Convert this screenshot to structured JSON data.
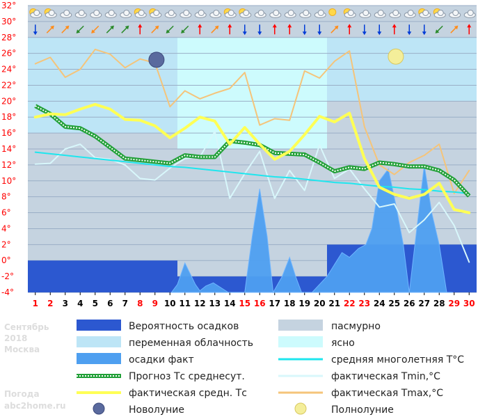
{
  "chart_data": {
    "type": "line",
    "ylim": [
      -4,
      32
    ],
    "yticks": [
      "-4",
      "-2",
      "0",
      "2",
      "4",
      "6",
      "8",
      "10",
      "12",
      "14",
      "16",
      "18",
      "20",
      "22",
      "24",
      "26",
      "28",
      "30",
      "32"
    ],
    "ytick_suffix": "°",
    "days": [
      1,
      2,
      3,
      4,
      5,
      6,
      7,
      8,
      9,
      10,
      11,
      12,
      13,
      14,
      15,
      16,
      17,
      18,
      19,
      20,
      21,
      22,
      23,
      24,
      25,
      26,
      27,
      28,
      29,
      30
    ],
    "day_colors": [
      "#ff0000",
      "#ff0000",
      "#000000",
      "#000000",
      "#000000",
      "#000000",
      "#000000",
      "#ff0000",
      "#ff0000",
      "#000000",
      "#000000",
      "#000000",
      "#000000",
      "#000000",
      "#ff0000",
      "#ff0000",
      "#000000",
      "#000000",
      "#000000",
      "#000000",
      "#000000",
      "#ff0000",
      "#ff0000",
      "#000000",
      "#000000",
      "#000000",
      "#000000",
      "#000000",
      "#ff0000",
      "#ff0000"
    ],
    "cloud_bands": [
      {
        "from_day": 0.5,
        "to_day": 10.5,
        "type": "partly",
        "y_top": 28,
        "y_bottom": 16
      },
      {
        "from_day": 10.5,
        "to_day": 20.5,
        "type": "clear",
        "y_top": 28,
        "y_bottom": 14
      },
      {
        "from_day": 20.5,
        "to_day": 30.5,
        "type": "overcast",
        "y_top": 20,
        "y_bottom": 2
      },
      {
        "from_day": 20.5,
        "to_day": 30.5,
        "type": "partly",
        "y_top": 28,
        "y_bottom": 20
      }
    ],
    "precip_probability_bars": [
      {
        "from_day": 0.5,
        "to_day": 10.5,
        "value": 0
      },
      {
        "from_day": 10.5,
        "to_day": 20.5,
        "value": -2
      },
      {
        "from_day": 20.5,
        "to_day": 30.5,
        "value": 2
      }
    ],
    "series": [
      {
        "name": "осадки факт",
        "type": "area",
        "color": "#4e9ff0",
        "x": [
          10.1,
          10.5,
          11.0,
          11.7,
          12.0,
          12.4,
          12.9,
          13.4,
          13.9,
          14.5,
          15.0,
          15.5,
          16.0,
          16.5,
          16.9,
          17.5,
          18.0,
          18.4,
          18.8,
          19.5,
          20.5,
          21.0,
          21.5,
          22.0,
          22.6,
          23.1,
          23.5,
          24.0,
          24.6,
          25.1,
          25.6,
          26.0,
          26.5,
          27.0,
          27.5,
          28.0,
          28.5,
          28.9
        ],
        "y": [
          -4,
          -3,
          -0.3,
          -3,
          -3.8,
          -3.2,
          -2.8,
          -3.4,
          -4,
          -4,
          -4,
          3,
          9,
          3,
          -4,
          -2,
          0.4,
          -2,
          -4,
          -4,
          -2,
          -0.5,
          1,
          0.4,
          1.5,
          2,
          4,
          10,
          11.5,
          7,
          2,
          -4,
          4,
          12,
          6,
          2,
          -4,
          -4
        ]
      },
      {
        "name": "фактическая Tmax,°C",
        "type": "line",
        "color": "#f5c47a",
        "width": 2,
        "values": [
          24.7,
          25.5,
          23.0,
          24.0,
          26.5,
          25.9,
          24.2,
          25.3,
          24.8,
          19.3,
          21.3,
          20.3,
          21.0,
          21.6,
          23.6,
          17.0,
          17.8,
          17.6,
          23.8,
          22.9,
          25.0,
          26.3,
          16.8,
          12.0,
          10.8,
          12.3,
          13.2,
          14.6,
          8.4,
          11.3
        ]
      },
      {
        "name": "фактическая Tmin,°C",
        "type": "line",
        "color": "#d8f7fb",
        "width": 2,
        "values": [
          12.1,
          12.2,
          14.0,
          14.6,
          12.9,
          12.7,
          12.0,
          10.3,
          10.1,
          11.6,
          12.8,
          13.0,
          16.2,
          7.8,
          10.9,
          13.7,
          7.8,
          11.3,
          8.8,
          14.5,
          10.3,
          11.5,
          9.0,
          6.7,
          7.1,
          3.5,
          5.1,
          7.3,
          4.4,
          -0.2
        ]
      },
      {
        "name": "средняя многолетняя T°C",
        "type": "line",
        "color": "#1ee6ee",
        "width": 2,
        "values": [
          13.6,
          13.4,
          13.2,
          13.0,
          12.8,
          12.6,
          12.4,
          12.2,
          12.0,
          11.8,
          11.7,
          11.5,
          11.3,
          11.1,
          10.9,
          10.7,
          10.5,
          10.4,
          10.2,
          10.0,
          9.8,
          9.7,
          9.5,
          9.3,
          9.2,
          9.0,
          8.9,
          8.7,
          8.6,
          8.4
        ]
      },
      {
        "name": "Прогноз Тс среднесут.",
        "type": "line",
        "color": "#22a038",
        "dash": "#ffffff",
        "width": 6,
        "values": [
          19.4,
          18.4,
          16.8,
          16.6,
          15.6,
          14.2,
          12.8,
          12.6,
          12.4,
          12.2,
          13.2,
          13.0,
          13.0,
          15.0,
          14.8,
          14.5,
          13.5,
          13.4,
          13.3,
          12.3,
          11.2,
          11.7,
          11.5,
          12.3,
          12.1,
          11.8,
          11.8,
          11.3,
          10.1,
          8.1
        ]
      },
      {
        "name": "фактическая средн. Тс",
        "type": "line",
        "color": "#ffff55",
        "width": 4,
        "values": [
          18.0,
          18.4,
          18.3,
          19.0,
          19.6,
          19.0,
          17.7,
          17.6,
          16.9,
          15.4,
          16.6,
          18.0,
          17.5,
          14.6,
          16.7,
          14.6,
          12.7,
          13.7,
          15.8,
          18.1,
          17.4,
          18.5,
          12.8,
          9.2,
          8.3,
          7.8,
          8.3,
          9.7,
          6.4,
          6.0
        ]
      }
    ],
    "moon_markers": [
      {
        "type": "new",
        "day": 9.1,
        "y": 25.2
      },
      {
        "type": "full",
        "day": 25.1,
        "y": 25.6
      }
    ],
    "weather_icons_row": [
      "sun-cloud",
      "sun-cloud",
      "cloud",
      "cloud",
      "cloud",
      "cloud",
      "cloud",
      "sun-cloud",
      "sun-cloud",
      "cloud",
      "cloud",
      "cloud",
      "cloud",
      "sun-cloud",
      "sun-cloud",
      "cloud",
      "cloud",
      "cloud",
      "cloud",
      "cloud",
      "sun",
      "sun-cloud",
      "cloud",
      "cloud",
      "cloud",
      "cloud",
      "sun-cloud",
      "sun-cloud",
      "cloud",
      "cloud"
    ],
    "wind_row": [
      {
        "dir": "S",
        "color": "#003bd6"
      },
      {
        "dir": "NE",
        "color": "#ff8c1a"
      },
      {
        "dir": "NE",
        "color": "#ff8c1a"
      },
      {
        "dir": "SW",
        "color": "#2a8a2a"
      },
      {
        "dir": "SW",
        "color": "#ff8c1a"
      },
      {
        "dir": "NE",
        "color": "#2a8a2a"
      },
      {
        "dir": "NE",
        "color": "#2a8a2a"
      },
      {
        "dir": "N",
        "color": "#ff0000"
      },
      {
        "dir": "NE",
        "color": "#ff8c1a"
      },
      {
        "dir": "SW",
        "color": "#2a8a2a"
      },
      {
        "dir": "SW",
        "color": "#2a8a2a"
      },
      {
        "dir": "N",
        "color": "#ff0000"
      },
      {
        "dir": "NE",
        "color": "#ff8c1a"
      },
      {
        "dir": "N",
        "color": "#ff0000"
      },
      {
        "dir": "S",
        "color": "#003bd6"
      },
      {
        "dir": "S",
        "color": "#003bd6"
      },
      {
        "dir": "N",
        "color": "#ff0000"
      },
      {
        "dir": "N",
        "color": "#ff0000"
      },
      {
        "dir": "S",
        "color": "#003bd6"
      },
      {
        "dir": "S",
        "color": "#003bd6"
      },
      {
        "dir": "NE",
        "color": "#ff8c1a"
      },
      {
        "dir": "N",
        "color": "#ff0000"
      },
      {
        "dir": "S",
        "color": "#003bd6"
      },
      {
        "dir": "S",
        "color": "#003bd6"
      },
      {
        "dir": "N",
        "color": "#ff0000"
      },
      {
        "dir": "S",
        "color": "#003bd6"
      },
      {
        "dir": "S",
        "color": "#003bd6"
      },
      {
        "dir": "SW",
        "color": "#2a8a2a"
      },
      {
        "dir": "NE",
        "color": "#ff8c1a"
      },
      {
        "dir": "N",
        "color": "#ff0000"
      }
    ]
  },
  "side": {
    "month": "Сентябрь",
    "year": "2018",
    "city": "Москва",
    "brand_line1": "Погода",
    "brand_line2": "abc2home.ru"
  },
  "legend": [
    {
      "key": "prob",
      "label": "Вероятность осадков",
      "swatch": "box",
      "color": "#2c58d0"
    },
    {
      "key": "partly",
      "label": "переменная облачность",
      "swatch": "box",
      "color": "#bde5f6"
    },
    {
      "key": "precip",
      "label": "осадки факт",
      "swatch": "box",
      "color": "#4e9ff0"
    },
    {
      "key": "forecast",
      "label": "Прогноз Тс среднесут.",
      "swatch": "dashed",
      "color": "#22a038"
    },
    {
      "key": "avg_actual",
      "label": "фактическая средн. Тс",
      "swatch": "line",
      "color": "#ffff55"
    },
    {
      "key": "new_moon",
      "label": "Новолуние",
      "swatch": "new-moon-icon",
      "color": "#5a6a9e"
    },
    {
      "key": "overcast",
      "label": "пасмурно",
      "swatch": "box",
      "color": "#c5d3e0"
    },
    {
      "key": "clear",
      "label": "ясно",
      "swatch": "box",
      "color": "#cdfbfd"
    },
    {
      "key": "longterm",
      "label": "средняя многолетняя T°C",
      "swatch": "line",
      "color": "#1ee6ee"
    },
    {
      "key": "tmin",
      "label": "фактическая Tmin,°C",
      "swatch": "line",
      "color": "#d8f7fb"
    },
    {
      "key": "tmax",
      "label": "фактическая Tmax,°C",
      "swatch": "line",
      "color": "#f5c47a"
    },
    {
      "key": "full_moon",
      "label": "Полнолуние",
      "swatch": "full-moon-icon",
      "color": "#f4ee9a"
    }
  ]
}
